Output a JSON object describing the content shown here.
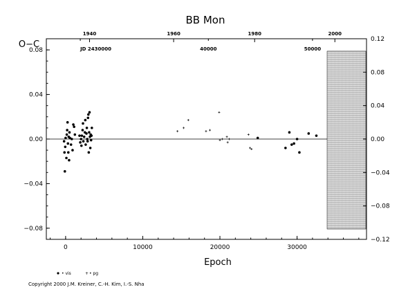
{
  "chart_data": {
    "type": "scatter",
    "title": "BB Mon",
    "xlabel": "Epoch",
    "ylabel": "O−C",
    "xlim": [
      -2500,
      39000
    ],
    "ylim": [
      -0.09,
      0.09
    ],
    "right_ylim": [
      -0.12,
      0.12
    ],
    "x_ticks": [
      0,
      10000,
      20000,
      30000
    ],
    "x_tick_labels": [
      "0",
      "10000",
      "20000",
      "30000"
    ],
    "y_ticks": [
      -0.08,
      -0.04,
      0.0,
      0.04,
      0.08
    ],
    "y_tick_labels": [
      "−0.08",
      "−0.04",
      "0.00",
      "0.04",
      "0.08"
    ],
    "right_ticks": [
      -0.12,
      -0.08,
      -0.04,
      0.0,
      0.04,
      0.08,
      0.12
    ],
    "right_tick_labels": [
      "−0.12",
      "−0.08",
      "−0.04",
      "0.00",
      "0.04",
      "0.08",
      "0.12"
    ],
    "top_year_ticks": [
      {
        "epoch": 3100,
        "label": "1940"
      },
      {
        "epoch": 14000,
        "label": "1960"
      },
      {
        "epoch": 24500,
        "label": "1980"
      },
      {
        "epoch": 34900,
        "label": "2000"
      }
    ],
    "top_jd_ticks": [
      {
        "epoch": 1900,
        "label": "JD 2430000"
      },
      {
        "epoch": 18500,
        "label": "40000"
      },
      {
        "epoch": 32000,
        "label": "50000"
      }
    ],
    "future_region": {
      "x_from": 33900,
      "x_to": 39000
    },
    "zero_line": 0.0,
    "grid": false,
    "series": [
      {
        "name": "• vis",
        "marker": "dot",
        "points": [
          [
            -200,
            -0.002
          ],
          [
            -150,
            -0.012
          ],
          [
            -100,
            -0.029
          ],
          [
            -50,
            -0.007
          ],
          [
            0,
            0.001
          ],
          [
            100,
            -0.017
          ],
          [
            150,
            0.004
          ],
          [
            200,
            0.008
          ],
          [
            250,
            0.015
          ],
          [
            300,
            -0.004
          ],
          [
            350,
            -0.012
          ],
          [
            400,
            0.002
          ],
          [
            450,
            -0.019
          ],
          [
            500,
            0.006
          ],
          [
            550,
            0.001
          ],
          [
            700,
            -0.005
          ],
          [
            800,
            0.0
          ],
          [
            900,
            -0.01
          ],
          [
            1000,
            0.013
          ],
          [
            1100,
            0.011
          ],
          [
            1200,
            0.004
          ],
          [
            1800,
            0.003
          ],
          [
            1900,
            -0.003
          ],
          [
            2000,
            0.0
          ],
          [
            2050,
            -0.006
          ],
          [
            2100,
            0.003
          ],
          [
            2200,
            0.008
          ],
          [
            2250,
            0.014
          ],
          [
            2300,
            -0.002
          ],
          [
            2400,
            0.002
          ],
          [
            2500,
            0.006
          ],
          [
            2550,
            0.017
          ],
          [
            2600,
            -0.005
          ],
          [
            2700,
            0.005
          ],
          [
            2750,
            0.01
          ],
          [
            2800,
            0.0
          ],
          [
            2850,
            -0.002
          ],
          [
            2900,
            0.019
          ],
          [
            2950,
            0.022
          ],
          [
            3000,
            -0.012
          ],
          [
            3050,
            0.006
          ],
          [
            3100,
            0.024
          ],
          [
            3150,
            0.002
          ],
          [
            3200,
            -0.008
          ],
          [
            3250,
            0.004
          ],
          [
            3300,
            -0.001
          ],
          [
            3350,
            0.003
          ],
          [
            3400,
            0.01
          ],
          [
            24900,
            0.001
          ],
          [
            28500,
            -0.008
          ],
          [
            29000,
            0.006
          ],
          [
            29300,
            -0.005
          ],
          [
            29600,
            -0.004
          ],
          [
            30000,
            0.0
          ],
          [
            30300,
            -0.012
          ],
          [
            31500,
            0.005
          ],
          [
            32500,
            0.003
          ]
        ]
      },
      {
        "name": "• pg",
        "marker": "plus",
        "points": [
          [
            14500,
            0.007
          ],
          [
            15300,
            0.01
          ],
          [
            15900,
            0.017
          ],
          [
            18200,
            0.007
          ],
          [
            18700,
            0.008
          ],
          [
            19900,
            0.024
          ],
          [
            20000,
            -0.001
          ],
          [
            20300,
            0.0
          ],
          [
            20900,
            0.002
          ],
          [
            21000,
            -0.003
          ],
          [
            21200,
            0.0
          ],
          [
            23700,
            0.004
          ],
          [
            23900,
            -0.008
          ],
          [
            24100,
            -0.009
          ]
        ]
      }
    ]
  },
  "copyright": "Copyright 2000 J.M. Kreiner, C.-H. Kim, I.-S. Nha"
}
